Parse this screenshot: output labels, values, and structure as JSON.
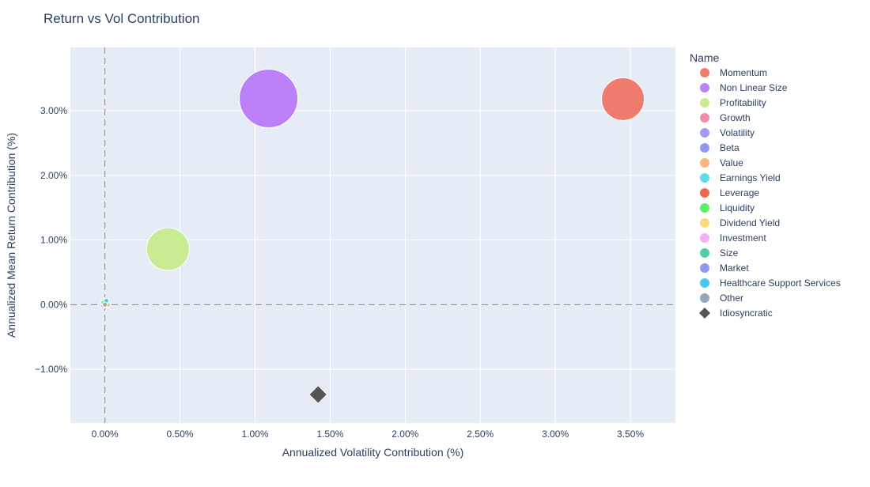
{
  "chart_data": {
    "type": "scatter",
    "title": "Return vs Vol Contribution",
    "xlabel": "Annualized Volatility Contribution (%)",
    "ylabel": "Annualized Mean Return Contribution (%)",
    "xlim": [
      -0.23,
      3.8
    ],
    "ylim": [
      -1.83,
      3.98
    ],
    "xticks": [
      0,
      0.5,
      1.0,
      1.5,
      2.0,
      2.5,
      3.0,
      3.5
    ],
    "xtick_labels": [
      "0.00%",
      "0.50%",
      "1.00%",
      "1.50%",
      "2.00%",
      "2.50%",
      "3.00%",
      "3.50%"
    ],
    "yticks": [
      -1,
      0,
      1,
      2,
      3
    ],
    "ytick_labels": [
      "−1.00%",
      "0.00%",
      "1.00%",
      "2.00%",
      "3.00%"
    ],
    "grid": true,
    "reference_lines": [
      {
        "axis": "x",
        "value": 0,
        "style": "dashed"
      },
      {
        "axis": "y",
        "value": 0,
        "style": "dashed"
      }
    ],
    "legend_title": "Name",
    "legend_position": "right",
    "series": [
      {
        "name": "Momentum",
        "color": "#EF7B6C",
        "symbol": "circle",
        "x": 3.45,
        "y": 3.18,
        "size": 1.0
      },
      {
        "name": "Non Linear Size",
        "color": "#BB80F7",
        "symbol": "circle",
        "x": 1.09,
        "y": 3.19,
        "size": 1.37
      },
      {
        "name": "Profitability",
        "color": "#C8EB93",
        "symbol": "circle",
        "x": 0.42,
        "y": 0.86,
        "size": 1.0
      },
      {
        "name": "Growth",
        "color": "#F08BA8",
        "symbol": "circle",
        "x": -0.01,
        "y": -0.02,
        "size": 0.09
      },
      {
        "name": "Volatility",
        "color": "#A29AF0",
        "symbol": "circle",
        "x": 0.0,
        "y": 0.01,
        "size": 0.08
      },
      {
        "name": "Beta",
        "color": "#8E9AF2",
        "symbol": "circle",
        "x": 0.01,
        "y": 0.02,
        "size": 0.08
      },
      {
        "name": "Value",
        "color": "#F9B77C",
        "symbol": "circle",
        "x": 0.02,
        "y": 0.0,
        "size": 0.08
      },
      {
        "name": "Earnings Yield",
        "color": "#5ADCEB",
        "symbol": "circle",
        "x": 0.01,
        "y": 0.08,
        "size": 0.09
      },
      {
        "name": "Leverage",
        "color": "#EF6650",
        "symbol": "circle",
        "x": 0.0,
        "y": 0.0,
        "size": 0.07
      },
      {
        "name": "Liquidity",
        "color": "#5AEE6E",
        "symbol": "circle",
        "x": -0.01,
        "y": 0.03,
        "size": 0.08
      },
      {
        "name": "Dividend Yield",
        "color": "#FDD780",
        "symbol": "circle",
        "x": 0.0,
        "y": 0.0,
        "size": 0.07
      },
      {
        "name": "Investment",
        "color": "#F4ADF7",
        "symbol": "circle",
        "x": 0.0,
        "y": -0.01,
        "size": 0.07
      },
      {
        "name": "Size",
        "color": "#4DD0A9",
        "symbol": "circle",
        "x": 0.0,
        "y": 0.04,
        "size": 0.09
      },
      {
        "name": "Market",
        "color": "#8E9AF2",
        "symbol": "circle",
        "x": 0.01,
        "y": 0.05,
        "size": 0.08
      },
      {
        "name": "Healthcare Support Services",
        "color": "#4CC6F2",
        "symbol": "circle",
        "x": 0.01,
        "y": 0.06,
        "size": 0.08
      },
      {
        "name": "Other",
        "color": "#94A7B4",
        "symbol": "circle",
        "x": 0.0,
        "y": 0.0,
        "size": 0.07
      },
      {
        "name": "Idiosyncratic",
        "color": "#555555",
        "symbol": "diamond",
        "x": 1.42,
        "y": -1.39,
        "size": 0.3
      }
    ]
  }
}
